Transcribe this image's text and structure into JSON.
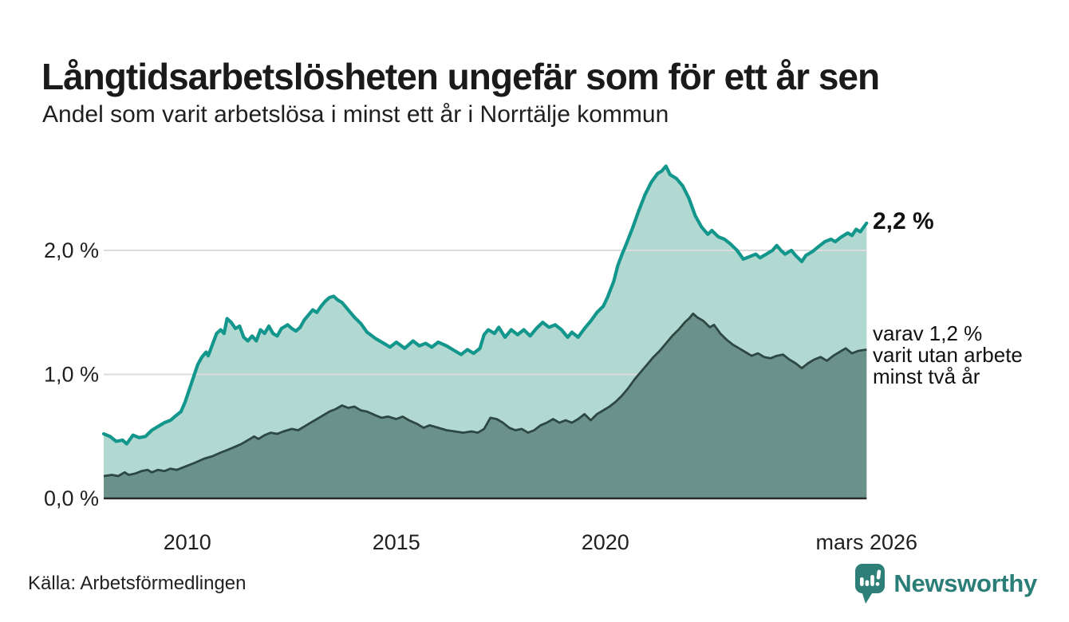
{
  "header": {
    "title": "Långtidsarbetslösheten ungefär som för ett år sen",
    "subtitle": "Andel som varit arbetslösa i minst ett år i Norrtälje kommun"
  },
  "annotations": {
    "latest_value": "2,2 %",
    "secondary_line1": "varav 1,2 %",
    "secondary_line2": "varit utan arbete",
    "secondary_line3": "minst två år"
  },
  "footer": {
    "source": "Källa: Arbetsförmedlingen",
    "brand": "Newsworthy"
  },
  "colors": {
    "series1_line": "#13968b",
    "series1_fill": "#b2d8d2",
    "series2_line": "#2d4742",
    "series2_fill": "#6b918b",
    "gridline": "#dcdcdc",
    "axis_line": "#2b2b2b",
    "tick_text": "#1f1f1f",
    "brand_teal": "#2b7e77"
  },
  "chart_data": {
    "type": "area",
    "title": "Långtidsarbetslösheten ungefär som för ett år sen",
    "subtitle": "Andel som varit arbetslösa i minst ett år i Norrtälje kommun",
    "unit": "%",
    "grid": "horizontal",
    "legend_position": "right-annotations",
    "x_axis": {
      "range": [
        2008.0,
        2026.25
      ],
      "ticks": [
        {
          "label": "2010",
          "year": 2010
        },
        {
          "label": "2015",
          "year": 2015
        },
        {
          "label": "2020",
          "year": 2020
        },
        {
          "label": "mars 2026",
          "year": 2026.25
        }
      ]
    },
    "y_axis": {
      "range": [
        0,
        2.8
      ],
      "ticks": [
        {
          "label": "0,0 %",
          "value": 0.0
        },
        {
          "label": "1,0 %",
          "value": 1.0
        },
        {
          "label": "2,0 %",
          "value": 2.0
        }
      ]
    },
    "series": [
      {
        "name": "Andel arbetslösa minst ett år",
        "latest": 2.2,
        "points": [
          [
            2008.0,
            0.52
          ],
          [
            2008.15,
            0.5
          ],
          [
            2008.3,
            0.46
          ],
          [
            2008.45,
            0.47
          ],
          [
            2008.55,
            0.44
          ],
          [
            2008.7,
            0.51
          ],
          [
            2008.85,
            0.49
          ],
          [
            2009.0,
            0.5
          ],
          [
            2009.15,
            0.55
          ],
          [
            2009.3,
            0.58
          ],
          [
            2009.45,
            0.61
          ],
          [
            2009.6,
            0.63
          ],
          [
            2009.7,
            0.66
          ],
          [
            2009.85,
            0.7
          ],
          [
            2009.95,
            0.78
          ],
          [
            2010.1,
            0.93
          ],
          [
            2010.25,
            1.08
          ],
          [
            2010.35,
            1.14
          ],
          [
            2010.45,
            1.18
          ],
          [
            2010.5,
            1.15
          ],
          [
            2010.6,
            1.24
          ],
          [
            2010.7,
            1.33
          ],
          [
            2010.8,
            1.36
          ],
          [
            2010.88,
            1.33
          ],
          [
            2010.95,
            1.45
          ],
          [
            2011.05,
            1.42
          ],
          [
            2011.15,
            1.37
          ],
          [
            2011.25,
            1.39
          ],
          [
            2011.35,
            1.3
          ],
          [
            2011.45,
            1.27
          ],
          [
            2011.55,
            1.31
          ],
          [
            2011.65,
            1.27
          ],
          [
            2011.75,
            1.36
          ],
          [
            2011.85,
            1.33
          ],
          [
            2011.95,
            1.39
          ],
          [
            2012.05,
            1.33
          ],
          [
            2012.15,
            1.31
          ],
          [
            2012.25,
            1.37
          ],
          [
            2012.4,
            1.4
          ],
          [
            2012.5,
            1.37
          ],
          [
            2012.6,
            1.35
          ],
          [
            2012.7,
            1.38
          ],
          [
            2012.8,
            1.44
          ],
          [
            2012.9,
            1.48
          ],
          [
            2013.0,
            1.52
          ],
          [
            2013.1,
            1.5
          ],
          [
            2013.2,
            1.55
          ],
          [
            2013.3,
            1.59
          ],
          [
            2013.4,
            1.62
          ],
          [
            2013.5,
            1.63
          ],
          [
            2013.6,
            1.6
          ],
          [
            2013.7,
            1.58
          ],
          [
            2013.8,
            1.54
          ],
          [
            2013.9,
            1.5
          ],
          [
            2014.0,
            1.46
          ],
          [
            2014.15,
            1.41
          ],
          [
            2014.3,
            1.34
          ],
          [
            2014.5,
            1.29
          ],
          [
            2014.7,
            1.25
          ],
          [
            2014.85,
            1.22
          ],
          [
            2015.0,
            1.26
          ],
          [
            2015.2,
            1.21
          ],
          [
            2015.4,
            1.27
          ],
          [
            2015.55,
            1.23
          ],
          [
            2015.7,
            1.25
          ],
          [
            2015.85,
            1.22
          ],
          [
            2016.0,
            1.26
          ],
          [
            2016.2,
            1.23
          ],
          [
            2016.4,
            1.19
          ],
          [
            2016.55,
            1.16
          ],
          [
            2016.7,
            1.2
          ],
          [
            2016.85,
            1.17
          ],
          [
            2017.0,
            1.21
          ],
          [
            2017.1,
            1.32
          ],
          [
            2017.2,
            1.36
          ],
          [
            2017.35,
            1.33
          ],
          [
            2017.45,
            1.38
          ],
          [
            2017.6,
            1.3
          ],
          [
            2017.75,
            1.36
          ],
          [
            2017.9,
            1.32
          ],
          [
            2018.05,
            1.36
          ],
          [
            2018.2,
            1.31
          ],
          [
            2018.35,
            1.37
          ],
          [
            2018.5,
            1.42
          ],
          [
            2018.65,
            1.38
          ],
          [
            2018.8,
            1.4
          ],
          [
            2018.95,
            1.36
          ],
          [
            2019.1,
            1.3
          ],
          [
            2019.2,
            1.34
          ],
          [
            2019.35,
            1.3
          ],
          [
            2019.5,
            1.37
          ],
          [
            2019.65,
            1.43
          ],
          [
            2019.8,
            1.5
          ],
          [
            2019.95,
            1.55
          ],
          [
            2020.05,
            1.62
          ],
          [
            2020.2,
            1.75
          ],
          [
            2020.3,
            1.88
          ],
          [
            2020.4,
            1.97
          ],
          [
            2020.5,
            2.05
          ],
          [
            2020.65,
            2.18
          ],
          [
            2020.8,
            2.32
          ],
          [
            2020.95,
            2.45
          ],
          [
            2021.1,
            2.55
          ],
          [
            2021.25,
            2.62
          ],
          [
            2021.35,
            2.64
          ],
          [
            2021.45,
            2.68
          ],
          [
            2021.55,
            2.61
          ],
          [
            2021.7,
            2.58
          ],
          [
            2021.85,
            2.52
          ],
          [
            2022.0,
            2.42
          ],
          [
            2022.15,
            2.28
          ],
          [
            2022.3,
            2.19
          ],
          [
            2022.45,
            2.13
          ],
          [
            2022.55,
            2.16
          ],
          [
            2022.7,
            2.11
          ],
          [
            2022.85,
            2.09
          ],
          [
            2023.0,
            2.05
          ],
          [
            2023.15,
            2.0
          ],
          [
            2023.3,
            1.93
          ],
          [
            2023.45,
            1.95
          ],
          [
            2023.6,
            1.97
          ],
          [
            2023.7,
            1.94
          ],
          [
            2023.85,
            1.97
          ],
          [
            2024.0,
            2.0
          ],
          [
            2024.1,
            2.04
          ],
          [
            2024.2,
            2.0
          ],
          [
            2024.3,
            1.97
          ],
          [
            2024.45,
            2.0
          ],
          [
            2024.55,
            1.96
          ],
          [
            2024.7,
            1.91
          ],
          [
            2024.8,
            1.96
          ],
          [
            2024.95,
            1.99
          ],
          [
            2025.1,
            2.03
          ],
          [
            2025.25,
            2.07
          ],
          [
            2025.4,
            2.09
          ],
          [
            2025.5,
            2.07
          ],
          [
            2025.65,
            2.11
          ],
          [
            2025.8,
            2.14
          ],
          [
            2025.9,
            2.12
          ],
          [
            2026.0,
            2.17
          ],
          [
            2026.1,
            2.15
          ],
          [
            2026.25,
            2.22
          ]
        ]
      },
      {
        "name": "varav utan arbete minst två år",
        "latest": 1.2,
        "points": [
          [
            2008.0,
            0.18
          ],
          [
            2008.2,
            0.19
          ],
          [
            2008.35,
            0.18
          ],
          [
            2008.5,
            0.21
          ],
          [
            2008.6,
            0.19
          ],
          [
            2008.75,
            0.2
          ],
          [
            2008.9,
            0.22
          ],
          [
            2009.05,
            0.23
          ],
          [
            2009.15,
            0.21
          ],
          [
            2009.3,
            0.23
          ],
          [
            2009.45,
            0.22
          ],
          [
            2009.6,
            0.24
          ],
          [
            2009.75,
            0.23
          ],
          [
            2009.9,
            0.25
          ],
          [
            2010.05,
            0.27
          ],
          [
            2010.2,
            0.29
          ],
          [
            2010.4,
            0.32
          ],
          [
            2010.6,
            0.34
          ],
          [
            2010.8,
            0.37
          ],
          [
            2010.95,
            0.39
          ],
          [
            2011.1,
            0.41
          ],
          [
            2011.3,
            0.44
          ],
          [
            2011.45,
            0.47
          ],
          [
            2011.6,
            0.5
          ],
          [
            2011.7,
            0.48
          ],
          [
            2011.85,
            0.51
          ],
          [
            2012.0,
            0.53
          ],
          [
            2012.15,
            0.52
          ],
          [
            2012.3,
            0.54
          ],
          [
            2012.5,
            0.56
          ],
          [
            2012.65,
            0.55
          ],
          [
            2012.8,
            0.58
          ],
          [
            2012.95,
            0.61
          ],
          [
            2013.1,
            0.64
          ],
          [
            2013.25,
            0.67
          ],
          [
            2013.4,
            0.7
          ],
          [
            2013.55,
            0.72
          ],
          [
            2013.7,
            0.75
          ],
          [
            2013.85,
            0.73
          ],
          [
            2014.0,
            0.74
          ],
          [
            2014.15,
            0.71
          ],
          [
            2014.3,
            0.7
          ],
          [
            2014.5,
            0.67
          ],
          [
            2014.65,
            0.65
          ],
          [
            2014.8,
            0.66
          ],
          [
            2015.0,
            0.64
          ],
          [
            2015.15,
            0.66
          ],
          [
            2015.3,
            0.63
          ],
          [
            2015.5,
            0.6
          ],
          [
            2015.65,
            0.57
          ],
          [
            2015.8,
            0.59
          ],
          [
            2016.0,
            0.57
          ],
          [
            2016.2,
            0.55
          ],
          [
            2016.4,
            0.54
          ],
          [
            2016.6,
            0.53
          ],
          [
            2016.8,
            0.54
          ],
          [
            2016.95,
            0.53
          ],
          [
            2017.1,
            0.56
          ],
          [
            2017.25,
            0.65
          ],
          [
            2017.4,
            0.64
          ],
          [
            2017.55,
            0.61
          ],
          [
            2017.7,
            0.57
          ],
          [
            2017.85,
            0.55
          ],
          [
            2018.0,
            0.56
          ],
          [
            2018.15,
            0.53
          ],
          [
            2018.3,
            0.55
          ],
          [
            2018.45,
            0.59
          ],
          [
            2018.6,
            0.61
          ],
          [
            2018.75,
            0.64
          ],
          [
            2018.9,
            0.61
          ],
          [
            2019.05,
            0.63
          ],
          [
            2019.2,
            0.61
          ],
          [
            2019.35,
            0.64
          ],
          [
            2019.5,
            0.68
          ],
          [
            2019.65,
            0.63
          ],
          [
            2019.8,
            0.68
          ],
          [
            2019.95,
            0.71
          ],
          [
            2020.1,
            0.74
          ],
          [
            2020.25,
            0.78
          ],
          [
            2020.4,
            0.83
          ],
          [
            2020.55,
            0.89
          ],
          [
            2020.7,
            0.96
          ],
          [
            2020.85,
            1.02
          ],
          [
            2021.0,
            1.08
          ],
          [
            2021.15,
            1.14
          ],
          [
            2021.3,
            1.19
          ],
          [
            2021.45,
            1.25
          ],
          [
            2021.6,
            1.31
          ],
          [
            2021.75,
            1.36
          ],
          [
            2021.9,
            1.42
          ],
          [
            2022.0,
            1.45
          ],
          [
            2022.1,
            1.49
          ],
          [
            2022.2,
            1.46
          ],
          [
            2022.35,
            1.43
          ],
          [
            2022.5,
            1.38
          ],
          [
            2022.6,
            1.4
          ],
          [
            2022.75,
            1.33
          ],
          [
            2022.9,
            1.28
          ],
          [
            2023.05,
            1.24
          ],
          [
            2023.2,
            1.21
          ],
          [
            2023.35,
            1.18
          ],
          [
            2023.5,
            1.15
          ],
          [
            2023.65,
            1.17
          ],
          [
            2023.8,
            1.14
          ],
          [
            2023.95,
            1.13
          ],
          [
            2024.1,
            1.15
          ],
          [
            2024.25,
            1.16
          ],
          [
            2024.4,
            1.12
          ],
          [
            2024.55,
            1.09
          ],
          [
            2024.7,
            1.05
          ],
          [
            2024.85,
            1.09
          ],
          [
            2025.0,
            1.12
          ],
          [
            2025.15,
            1.14
          ],
          [
            2025.3,
            1.11
          ],
          [
            2025.45,
            1.15
          ],
          [
            2025.6,
            1.18
          ],
          [
            2025.75,
            1.21
          ],
          [
            2025.9,
            1.17
          ],
          [
            2026.05,
            1.19
          ],
          [
            2026.25,
            1.2
          ]
        ]
      }
    ]
  }
}
